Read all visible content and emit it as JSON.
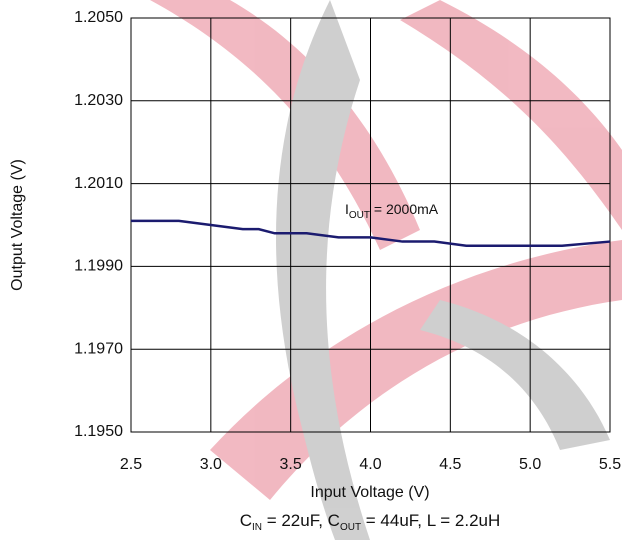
{
  "chart_data": {
    "type": "line",
    "x_label": "Input Voltage (V)",
    "y_label": "Output Voltage (V)",
    "x": [
      2.5,
      2.8,
      3.0,
      3.2,
      3.3,
      3.4,
      3.6,
      3.8,
      4.0,
      4.2,
      4.4,
      4.6,
      5.0,
      5.2,
      5.5
    ],
    "series": [
      {
        "color": "#1b1b6f",
        "values": [
          1.2001,
          1.2001,
          1.2,
          1.1999,
          1.1999,
          1.1998,
          1.1998,
          1.1997,
          1.1997,
          1.1996,
          1.1996,
          1.1995,
          1.1995,
          1.1995,
          1.1996
        ]
      }
    ],
    "xlim": [
      2.5,
      5.5
    ],
    "xticks": [
      2.5,
      {
        "value": 3,
        "label": "3.0"
      },
      3.5,
      {
        "value": 4,
        "label": "4.0"
      },
      4.5,
      {
        "value": 5,
        "label": "5.0"
      },
      5.5
    ],
    "ylim": [
      1.195,
      1.205
    ],
    "yticks": [
      {
        "value": 1.195,
        "label": "1.1950"
      },
      {
        "value": 1.197,
        "label": "1.1970"
      },
      {
        "value": 1.199,
        "label": "1.1990"
      },
      {
        "value": 1.201,
        "label": "1.2010"
      },
      {
        "value": 1.203,
        "label": "1.2030"
      },
      {
        "value": 1.205,
        "label": "1.2050"
      }
    ],
    "grid": true,
    "annotation": [
      {
        "text": "I"
      },
      {
        "text": "OUT",
        "sub": true
      },
      {
        "text": " = 2000mA"
      }
    ],
    "footnote": [
      {
        "text": "C"
      },
      {
        "text": "IN",
        "sub": true
      },
      {
        "text": " = 22uF, C"
      },
      {
        "text": "OUT",
        "sub": true
      },
      {
        "text": " = 44uF, L = 2.2uH"
      }
    ]
  }
}
